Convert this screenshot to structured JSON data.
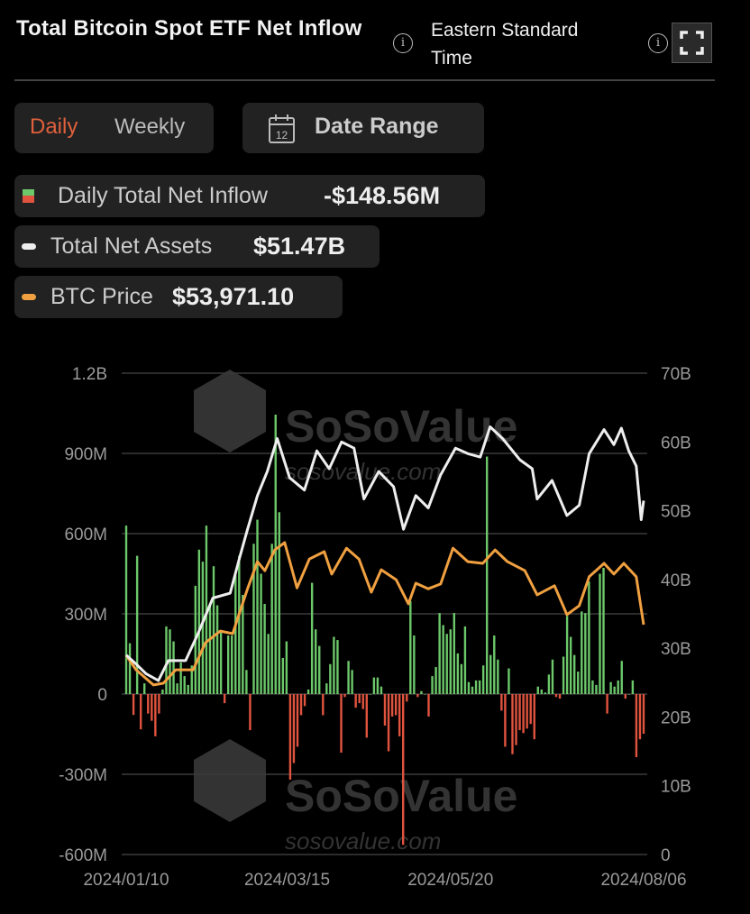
{
  "header": {
    "title": "Total Bitcoin Spot ETF Net Inflow",
    "timezone": "Eastern Standard Time",
    "info_icon": "info-icon",
    "fullscreen_icon": "fullscreen-icon"
  },
  "controls": {
    "daily_label": "Daily",
    "weekly_label": "Weekly",
    "active_period": "Daily",
    "date_range_label": "Date Range",
    "calendar_icon_day": "12"
  },
  "legend": [
    {
      "label": "Daily Total Net Inflow",
      "value": "-$148.56M"
    },
    {
      "label": "Total Net Assets",
      "value": "$51.47B"
    },
    {
      "label": "BTC Price",
      "value": "$53,971.10"
    }
  ],
  "colors": {
    "inflow_positive": "#6cc86a",
    "inflow_negative": "#e0533f",
    "net_assets": "#eeeeee",
    "btc_price": "#f0a040",
    "active_tab": "#e0603c"
  },
  "watermark": {
    "brand": "SoSoValue",
    "site": "sosovalue.com"
  },
  "chart_data": {
    "type": "bar+line",
    "xlabel": "",
    "ylabel": "",
    "x_ticks": [
      "2024/01/10",
      "2024/03/15",
      "2024/05/20",
      "2024/08/06"
    ],
    "x_range": [
      "2024-01-10",
      "2024-08-06"
    ],
    "y_left_ticks": [
      "1.2B",
      "900M",
      "600M",
      "300M",
      "0",
      "-300M",
      "-600M"
    ],
    "y_left_range_millions": [
      -600,
      1200
    ],
    "y_right_ticks": [
      "70B",
      "60B",
      "50B",
      "40B",
      "30B",
      "20B",
      "10B",
      "0"
    ],
    "y_right_range_billions": [
      0,
      70
    ],
    "grid": true,
    "series": [
      {
        "name": "Daily Total Net Inflow",
        "type": "bar",
        "axis": "left",
        "unit": "USD millions",
        "values": [
          630,
          190,
          -78,
          517,
          -132,
          40,
          -73,
          -100,
          -158,
          -73,
          17,
          253,
          242,
          197,
          40,
          118,
          67,
          34,
          107,
          405,
          540,
          495,
          630,
          337,
          478,
          332,
          236,
          -34,
          219,
          219,
          444,
          517,
          371,
          90,
          -135,
          562,
          652,
          450,
          337,
          225,
          562,
          1045,
          680,
          135,
          197,
          -320,
          -258,
          -197,
          -79,
          -45,
          17,
          416,
          242,
          180,
          -79,
          40,
          112,
          214,
          202,
          -219,
          -11,
          124,
          90,
          -51,
          -34,
          -56,
          -163,
          0,
          62,
          62,
          28,
          -118,
          -214,
          -84,
          -79,
          -158,
          -564,
          -28,
          348,
          219,
          -11,
          11,
          0,
          -84,
          67,
          101,
          303,
          258,
          225,
          242,
          303,
          152,
          112,
          253,
          45,
          28,
          51,
          51,
          107,
          888,
          146,
          219,
          129,
          -62,
          -197,
          96,
          -225,
          -191,
          -135,
          -146,
          -129,
          -112,
          -169,
          28,
          17,
          6,
          73,
          129,
          -11,
          -17,
          140,
          292,
          214,
          146,
          84,
          309,
          303,
          421,
          51,
          34,
          450,
          472,
          -73,
          45,
          28,
          51,
          124,
          -17,
          0,
          51,
          -236,
          -169,
          -148.56
        ]
      },
      {
        "name": "Total Net Assets",
        "type": "line",
        "axis": "right",
        "unit": "USD billions",
        "points": [
          [
            "2024-01-10",
            29.0
          ],
          [
            "2024-01-14",
            27.7
          ],
          [
            "2024-01-18",
            26.3
          ],
          [
            "2024-01-23",
            25.3
          ],
          [
            "2024-01-27",
            28.2
          ],
          [
            "2024-02-03",
            28.2
          ],
          [
            "2024-02-08",
            32.1
          ],
          [
            "2024-02-14",
            37.3
          ],
          [
            "2024-02-21",
            38.0
          ],
          [
            "2024-02-25",
            43.4
          ],
          [
            "2024-02-28",
            47.3
          ],
          [
            "2024-03-03",
            52.2
          ],
          [
            "2024-03-07",
            55.7
          ],
          [
            "2024-03-11",
            60.5
          ],
          [
            "2024-03-16",
            54.8
          ],
          [
            "2024-03-22",
            53.0
          ],
          [
            "2024-03-27",
            58.7
          ],
          [
            "2024-04-01",
            56.1
          ],
          [
            "2024-04-06",
            60.0
          ],
          [
            "2024-04-11",
            59.1
          ],
          [
            "2024-04-15",
            51.7
          ],
          [
            "2024-04-21",
            55.7
          ],
          [
            "2024-04-27",
            53.5
          ],
          [
            "2024-05-01",
            47.3
          ],
          [
            "2024-05-06",
            52.2
          ],
          [
            "2024-05-11",
            50.4
          ],
          [
            "2024-05-16",
            55.2
          ],
          [
            "2024-05-22",
            59.1
          ],
          [
            "2024-05-27",
            58.3
          ],
          [
            "2024-06-01",
            57.8
          ],
          [
            "2024-06-05",
            62.2
          ],
          [
            "2024-06-10",
            60.5
          ],
          [
            "2024-06-17",
            57.4
          ],
          [
            "2024-06-22",
            56.1
          ],
          [
            "2024-06-24",
            51.7
          ],
          [
            "2024-06-30",
            54.4
          ],
          [
            "2024-07-06",
            49.3
          ],
          [
            "2024-07-11",
            50.8
          ],
          [
            "2024-07-15",
            58.3
          ],
          [
            "2024-07-21",
            61.8
          ],
          [
            "2024-07-25",
            59.6
          ],
          [
            "2024-07-28",
            62.0
          ],
          [
            "2024-07-31",
            58.7
          ],
          [
            "2024-08-03",
            56.5
          ],
          [
            "2024-08-05",
            48.7
          ],
          [
            "2024-08-06",
            51.47
          ]
        ]
      },
      {
        "name": "BTC Price",
        "type": "line",
        "axis": "hidden",
        "unit": "USD",
        "points": [
          [
            "2024-01-10",
            46900
          ],
          [
            "2024-01-14",
            43500
          ],
          [
            "2024-01-21",
            40000
          ],
          [
            "2024-01-25",
            40400
          ],
          [
            "2024-01-30",
            43500
          ],
          [
            "2024-02-06",
            43500
          ],
          [
            "2024-02-11",
            49800
          ],
          [
            "2024-02-17",
            52500
          ],
          [
            "2024-02-22",
            51900
          ],
          [
            "2024-02-28",
            62300
          ],
          [
            "2024-03-03",
            68600
          ],
          [
            "2024-03-06",
            66500
          ],
          [
            "2024-03-10",
            71300
          ],
          [
            "2024-03-14",
            73000
          ],
          [
            "2024-03-19",
            62500
          ],
          [
            "2024-03-24",
            69200
          ],
          [
            "2024-03-30",
            70900
          ],
          [
            "2024-04-02",
            65700
          ],
          [
            "2024-04-08",
            71700
          ],
          [
            "2024-04-13",
            69200
          ],
          [
            "2024-04-18",
            61500
          ],
          [
            "2024-04-22",
            66700
          ],
          [
            "2024-04-28",
            64400
          ],
          [
            "2024-05-03",
            58800
          ],
          [
            "2024-05-06",
            63600
          ],
          [
            "2024-05-11",
            62300
          ],
          [
            "2024-05-16",
            63400
          ],
          [
            "2024-05-21",
            71700
          ],
          [
            "2024-05-27",
            68600
          ],
          [
            "2024-06-02",
            68200
          ],
          [
            "2024-06-07",
            71300
          ],
          [
            "2024-06-12",
            68600
          ],
          [
            "2024-06-19",
            66500
          ],
          [
            "2024-06-24",
            60900
          ],
          [
            "2024-07-01",
            63000
          ],
          [
            "2024-07-06",
            56300
          ],
          [
            "2024-07-11",
            58400
          ],
          [
            "2024-07-15",
            65100
          ],
          [
            "2024-07-21",
            68200
          ],
          [
            "2024-07-25",
            65700
          ],
          [
            "2024-07-29",
            68200
          ],
          [
            "2024-08-03",
            65100
          ],
          [
            "2024-08-06",
            53971.1
          ]
        ]
      }
    ]
  }
}
